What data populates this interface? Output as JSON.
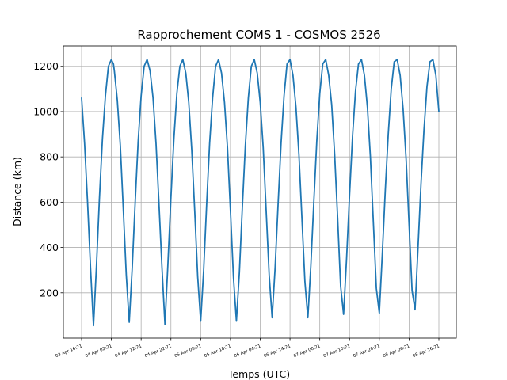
{
  "chart_data": {
    "type": "line",
    "title": "Rapprochement COMS 1 - COSMOS 2526",
    "xlabel": "Temps (UTC)",
    "ylabel": "Distance (km)",
    "ylim": [
      0,
      1290
    ],
    "y_ticks": [
      200,
      400,
      600,
      800,
      1000,
      1200
    ],
    "x_tick_labels": [
      "03 Apr 16:21",
      "04 Apr 02:21",
      "04 Apr 12:21",
      "04 Apr 22:21",
      "05 Apr 08:21",
      "05 Apr 18:21",
      "06 Apr 04:21",
      "06 Apr 14:21",
      "07 Apr 00:21",
      "07 Apr 10:21",
      "07 Apr 20:21",
      "08 Apr 06:21",
      "08 Apr 16:21"
    ],
    "grid": true,
    "legend": "none",
    "series": [
      {
        "color": "#1f77b4",
        "x_hours": [
          0,
          1,
          2,
          3,
          4,
          5,
          6,
          7,
          8,
          9,
          10,
          10.7,
          11,
          12,
          13,
          14,
          15,
          16,
          17,
          18,
          19,
          20,
          21,
          22,
          23,
          24,
          25,
          26,
          27,
          28,
          29,
          30,
          31,
          32,
          33,
          34,
          35,
          36,
          37,
          38,
          39,
          40,
          41,
          42,
          43,
          44,
          45,
          46,
          47,
          48,
          49,
          50,
          51,
          52,
          53,
          54,
          55,
          56,
          57,
          58,
          59,
          60,
          61,
          62,
          63,
          64,
          65,
          66,
          67,
          68,
          69,
          70,
          71,
          72,
          73,
          74,
          75,
          76,
          77,
          78,
          79,
          80,
          81,
          82,
          83,
          84,
          85,
          86,
          87,
          88,
          89,
          90,
          91,
          92,
          93,
          94,
          95,
          96,
          97,
          98,
          99,
          100,
          101,
          102,
          103,
          104,
          105,
          106,
          107,
          108,
          109,
          110,
          111,
          112,
          113,
          114,
          115,
          116,
          117,
          118,
          119,
          120
        ],
        "y": [
          1060,
          860,
          600,
          310,
          55,
          320,
          620,
          880,
          1070,
          1200,
          1230,
          1210,
          1180,
          1050,
          850,
          570,
          280,
          70,
          310,
          600,
          870,
          1070,
          1200,
          1230,
          1180,
          1060,
          860,
          590,
          310,
          60,
          330,
          620,
          880,
          1080,
          1200,
          1230,
          1170,
          1040,
          830,
          560,
          270,
          75,
          300,
          590,
          860,
          1060,
          1200,
          1230,
          1170,
          1040,
          840,
          560,
          270,
          75,
          290,
          580,
          850,
          1060,
          1200,
          1230,
          1170,
          1040,
          840,
          560,
          280,
          90,
          310,
          590,
          860,
          1070,
          1210,
          1230,
          1160,
          1020,
          810,
          530,
          250,
          90,
          320,
          600,
          870,
          1080,
          1210,
          1230,
          1160,
          1030,
          810,
          530,
          230,
          105,
          350,
          630,
          890,
          1090,
          1210,
          1230,
          1160,
          1020,
          800,
          510,
          220,
          110,
          370,
          650,
          900,
          1100,
          1220,
          1230,
          1160,
          1010,
          790,
          500,
          210,
          125,
          400,
          680,
          920,
          1110,
          1220,
          1230,
          1160,
          1000
        ]
      }
    ]
  }
}
